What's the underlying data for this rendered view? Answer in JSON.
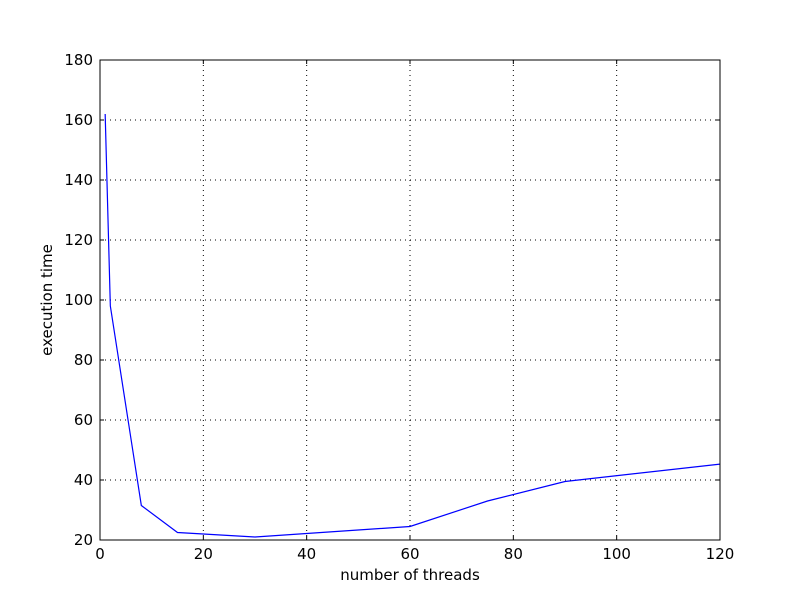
{
  "chart_data": {
    "type": "line",
    "xlabel": "number of threads",
    "ylabel": "execution time",
    "xlim": [
      0,
      120
    ],
    "ylim": [
      20,
      180
    ],
    "xticks": [
      0,
      20,
      40,
      60,
      80,
      100,
      120
    ],
    "yticks": [
      20,
      40,
      60,
      80,
      100,
      120,
      140,
      160,
      180
    ],
    "grid": true,
    "series": [
      {
        "color": "#0000ff",
        "x": [
          1,
          2,
          8,
          15,
          30,
          60,
          75,
          90,
          120
        ],
        "y": [
          162,
          98,
          31.5,
          22.5,
          21,
          24.5,
          33,
          39.5,
          45.3
        ]
      }
    ]
  }
}
